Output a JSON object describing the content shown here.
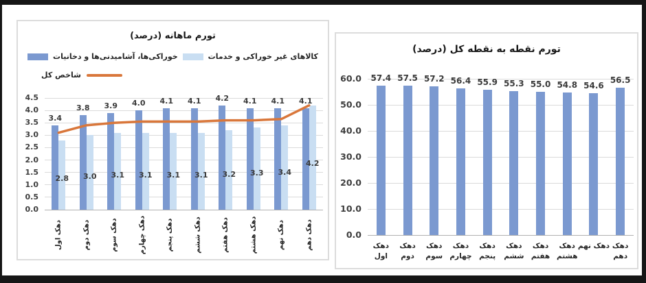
{
  "chart_data": [
    {
      "type": "bar",
      "title": "تورم ماهانه (درصد)",
      "categories": [
        "دهک اول",
        "دهک دوم",
        "دهک سوم",
        "دهک چهارم",
        "دهک پنجم",
        "دهک ششم",
        "دهک هفتم",
        "دهک هشتم",
        "دهک نهم",
        "دهک دهم"
      ],
      "series": [
        {
          "name": "خوراکی‌ها، آشامیدنی‌ها و دخانیات",
          "type": "bar",
          "color": "#7b99d0",
          "values": [
            3.4,
            3.8,
            3.9,
            4.0,
            4.1,
            4.1,
            4.2,
            4.1,
            4.1,
            4.1
          ]
        },
        {
          "name": "کالاهای غیر خوراکی و خدمات",
          "type": "bar",
          "color": "#c9def2",
          "values": [
            2.8,
            3.0,
            3.1,
            3.1,
            3.1,
            3.1,
            3.2,
            3.3,
            3.4,
            4.2
          ]
        },
        {
          "name": "شاخص کل",
          "type": "line",
          "color": "#d9773b",
          "values": [
            3.1,
            3.4,
            3.5,
            3.55,
            3.55,
            3.55,
            3.6,
            3.6,
            3.65,
            4.2
          ]
        }
      ],
      "ylim": [
        0,
        4.5
      ],
      "ytick_step": 0.5,
      "grid": true,
      "legend_position": "top",
      "xlabel": "",
      "ylabel": ""
    },
    {
      "type": "bar",
      "title": "تورم نقطه به نقطه کل (درصد)",
      "categories": [
        "دهک اول",
        "دهک دوم",
        "دهک سوم",
        "دهک چهارم",
        "دهک پنجم",
        "دهک ششم",
        "دهک هفتم",
        "دهک هشتم",
        "دهک نهم",
        "دهک دهم"
      ],
      "values": [
        57.4,
        57.5,
        57.2,
        56.4,
        55.9,
        55.3,
        55.0,
        54.8,
        54.6,
        56.5
      ],
      "bar_color": "#7b99d0",
      "ylim": [
        0,
        60
      ],
      "ytick_step": 10,
      "grid": true,
      "legend_position": "none",
      "xlabel": "",
      "ylabel": ""
    }
  ]
}
